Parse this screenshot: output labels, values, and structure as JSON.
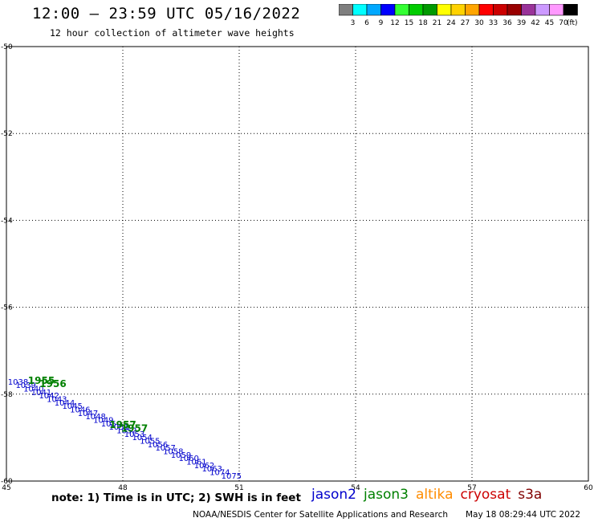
{
  "header": {
    "title": "12:00 – 23:59 UTC 05/16/2022",
    "subtitle": "12 hour collection of altimeter wave heights"
  },
  "colorbar": {
    "swatches": [
      "#7f7f7f",
      "#00ffff",
      "#00a8ff",
      "#0000ff",
      "#33ff33",
      "#00cc00",
      "#009900",
      "#ffff00",
      "#ffd200",
      "#ffa500",
      "#ff0000",
      "#cc0000",
      "#990000",
      "#993399",
      "#cc99ff",
      "#ff99ff",
      "#000000"
    ],
    "labels": [
      "3",
      "6",
      "9",
      "12",
      "15",
      "18",
      "21",
      "24",
      "27",
      "30",
      "33",
      "36",
      "39",
      "42",
      "45",
      "70"
    ],
    "unit": "(ft)"
  },
  "footer": {
    "note": "note: 1) Time is in UTC; 2) SWH is in feet",
    "credit": "NOAA/NESDIS Center for Satellite Applications and Research",
    "timestamp": "May 18 08:29:44 UTC 2022"
  },
  "legend": [
    {
      "name": "jason2",
      "color": "#0000cc"
    },
    {
      "name": "jason3",
      "color": "#008000"
    },
    {
      "name": "altika",
      "color": "#ff8c00"
    },
    {
      "name": "cryosat",
      "color": "#cc0000"
    },
    {
      "name": "s3a",
      "color": "#800000"
    }
  ],
  "chart_data": {
    "type": "scatter",
    "xlim": [
      45,
      60
    ],
    "ylim": [
      -60,
      -50
    ],
    "xticks": [
      "45",
      "48",
      "51",
      "54",
      "57",
      "60"
    ],
    "yticks": [
      "-50",
      "-52",
      "-54",
      "-56",
      "-58",
      "-60"
    ],
    "grid": true,
    "series": [
      {
        "name": "jason2",
        "color": "#0000cc",
        "points": [
          {
            "x": 45.3,
            "y": -57.78,
            "label": "1038"
          },
          {
            "x": 45.5,
            "y": -57.86,
            "label": "1039"
          },
          {
            "x": 45.7,
            "y": -57.94,
            "label": "1040"
          },
          {
            "x": 45.9,
            "y": -58.02,
            "label": "1041"
          },
          {
            "x": 46.1,
            "y": -58.1,
            "label": "1042"
          },
          {
            "x": 46.3,
            "y": -58.18,
            "label": "1043"
          },
          {
            "x": 46.5,
            "y": -58.26,
            "label": "1044"
          },
          {
            "x": 46.7,
            "y": -58.34,
            "label": "1045"
          },
          {
            "x": 46.9,
            "y": -58.42,
            "label": "1046"
          },
          {
            "x": 47.1,
            "y": -58.5,
            "label": "1047"
          },
          {
            "x": 47.3,
            "y": -58.58,
            "label": "1048"
          },
          {
            "x": 47.5,
            "y": -58.66,
            "label": "1049"
          },
          {
            "x": 47.7,
            "y": -58.74,
            "label": "1050"
          },
          {
            "x": 47.9,
            "y": -58.82,
            "label": "1051"
          },
          {
            "x": 48.1,
            "y": -58.9,
            "label": "1052"
          },
          {
            "x": 48.3,
            "y": -58.98,
            "label": "1053"
          },
          {
            "x": 48.5,
            "y": -59.06,
            "label": "1054"
          },
          {
            "x": 48.7,
            "y": -59.14,
            "label": "1055"
          },
          {
            "x": 48.9,
            "y": -59.22,
            "label": "1056"
          },
          {
            "x": 49.1,
            "y": -59.3,
            "label": "1057"
          },
          {
            "x": 49.3,
            "y": -59.38,
            "label": "1058"
          },
          {
            "x": 49.5,
            "y": -59.46,
            "label": "1059"
          },
          {
            "x": 49.7,
            "y": -59.54,
            "label": "1060"
          },
          {
            "x": 49.9,
            "y": -59.62,
            "label": "1061"
          },
          {
            "x": 50.1,
            "y": -59.7,
            "label": "1062"
          },
          {
            "x": 50.3,
            "y": -59.78,
            "label": "1063"
          },
          {
            "x": 50.5,
            "y": -59.86,
            "label": "1074"
          },
          {
            "x": 50.8,
            "y": -59.94,
            "label": "1075"
          }
        ]
      },
      {
        "name": "jason3",
        "color": "#008000",
        "points": [
          {
            "x": 45.9,
            "y": -57.76,
            "label": "1955"
          },
          {
            "x": 46.2,
            "y": -57.84,
            "label": "1956"
          },
          {
            "x": 48.0,
            "y": -58.78,
            "label": "1957"
          },
          {
            "x": 48.3,
            "y": -58.86,
            "label": "1957"
          }
        ]
      }
    ]
  }
}
